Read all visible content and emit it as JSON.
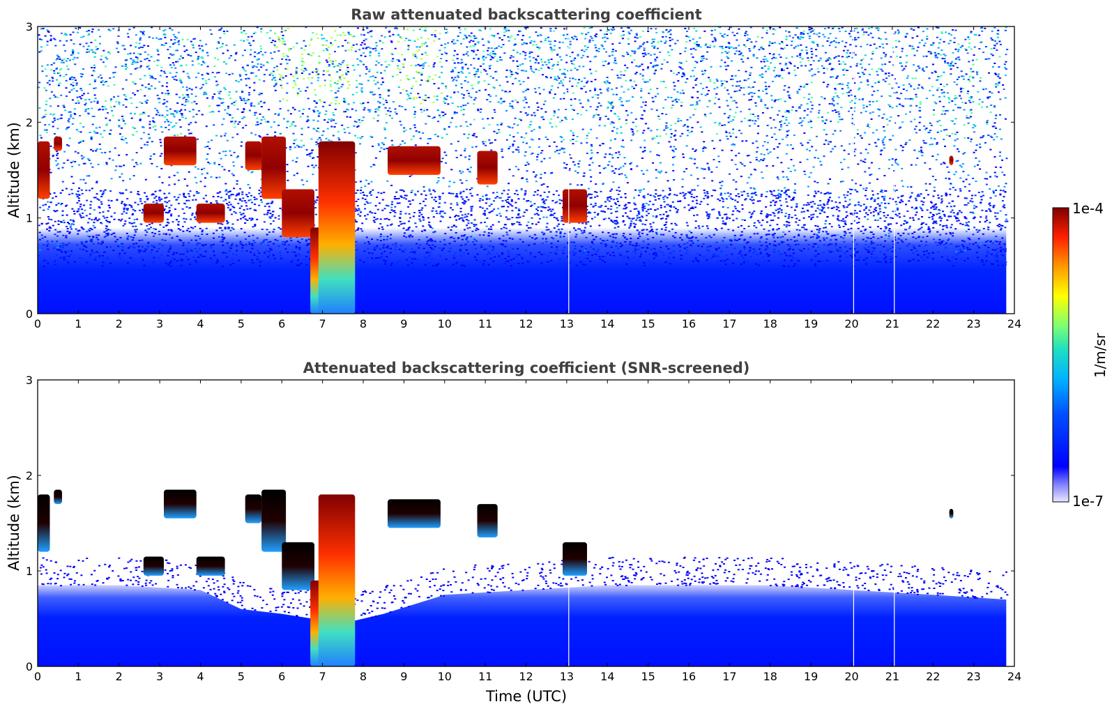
{
  "chart_data": [
    {
      "type": "heatmap",
      "title": "Raw attenuated backscattering coefficient",
      "xlabel": "",
      "ylabel": "Altitude (km)",
      "xlim": [
        0,
        24
      ],
      "ylim": [
        0,
        3
      ],
      "x_ticks": [
        "0",
        "1",
        "2",
        "3",
        "4",
        "5",
        "6",
        "7",
        "8",
        "9",
        "10",
        "11",
        "12",
        "13",
        "14",
        "15",
        "16",
        "17",
        "18",
        "19",
        "20",
        "21",
        "22",
        "23",
        "24"
      ],
      "y_ticks": [
        "0",
        "1",
        "2",
        "3"
      ],
      "features": [
        {
          "kind": "cloud",
          "time_start": 0.0,
          "time_end": 0.3,
          "alt_top": 1.8,
          "alt_bottom": 1.2
        },
        {
          "kind": "cloud",
          "time_start": 0.4,
          "time_end": 0.6,
          "alt_top": 1.85,
          "alt_bottom": 1.7
        },
        {
          "kind": "cloud",
          "time_start": 2.6,
          "time_end": 3.1,
          "alt_top": 1.15,
          "alt_bottom": 0.95
        },
        {
          "kind": "cloud",
          "time_start": 3.1,
          "time_end": 3.9,
          "alt_top": 1.85,
          "alt_bottom": 1.55
        },
        {
          "kind": "cloud",
          "time_start": 3.9,
          "time_end": 4.6,
          "alt_top": 1.15,
          "alt_bottom": 0.95
        },
        {
          "kind": "cloud",
          "time_start": 5.1,
          "time_end": 5.5,
          "alt_top": 1.8,
          "alt_bottom": 1.5
        },
        {
          "kind": "cloud",
          "time_start": 5.5,
          "time_end": 6.1,
          "alt_top": 1.85,
          "alt_bottom": 1.2
        },
        {
          "kind": "cloud",
          "time_start": 6.0,
          "time_end": 6.8,
          "alt_top": 1.3,
          "alt_bottom": 0.8
        },
        {
          "kind": "cloud",
          "time_start": 6.7,
          "time_end": 7.0,
          "alt_top": 0.9,
          "alt_bottom": 0.0
        },
        {
          "kind": "cloud",
          "time_start": 6.9,
          "time_end": 7.8,
          "alt_top": 1.8,
          "alt_bottom": 0.0
        },
        {
          "kind": "cloud",
          "time_start": 8.6,
          "time_end": 9.9,
          "alt_top": 1.75,
          "alt_bottom": 1.45
        },
        {
          "kind": "cloud",
          "time_start": 10.8,
          "time_end": 11.3,
          "alt_top": 1.7,
          "alt_bottom": 1.35
        },
        {
          "kind": "cloud",
          "time_start": 12.9,
          "time_end": 13.5,
          "alt_top": 1.3,
          "alt_bottom": 0.95
        },
        {
          "kind": "cloud",
          "time_start": 22.4,
          "time_end": 22.5,
          "alt_top": 1.65,
          "alt_bottom": 1.55
        }
      ]
    },
    {
      "type": "heatmap",
      "title": "Attenuated backscattering coefficient (SNR-screened)",
      "xlabel": "Time (UTC)",
      "ylabel": "Altitude (km)",
      "xlim": [
        0,
        24
      ],
      "ylim": [
        0,
        3
      ],
      "x_ticks": [
        "0",
        "1",
        "2",
        "3",
        "4",
        "5",
        "6",
        "7",
        "8",
        "9",
        "10",
        "11",
        "12",
        "13",
        "14",
        "15",
        "16",
        "17",
        "18",
        "19",
        "20",
        "21",
        "22",
        "23",
        "24"
      ],
      "y_ticks": [
        "0",
        "1",
        "2",
        "3"
      ],
      "boundary_layer_top": [
        {
          "time": 0,
          "alt": 0.85
        },
        {
          "time": 2,
          "alt": 0.85
        },
        {
          "time": 4,
          "alt": 0.8
        },
        {
          "time": 5,
          "alt": 0.6
        },
        {
          "time": 6,
          "alt": 0.55
        },
        {
          "time": 7.5,
          "alt": 0.45
        },
        {
          "time": 8.5,
          "alt": 0.55
        },
        {
          "time": 10,
          "alt": 0.75
        },
        {
          "time": 12,
          "alt": 0.8
        },
        {
          "time": 14,
          "alt": 0.85
        },
        {
          "time": 16,
          "alt": 0.85
        },
        {
          "time": 18,
          "alt": 0.85
        },
        {
          "time": 20,
          "alt": 0.8
        },
        {
          "time": 22,
          "alt": 0.75
        },
        {
          "time": 23.8,
          "alt": 0.7
        }
      ]
    }
  ],
  "colorbar": {
    "label": "1/m/sr",
    "max_label": "1e-4",
    "min_label": "1e-7",
    "scale": "log",
    "range": [
      1e-07,
      0.0001
    ],
    "colormap": "jet"
  }
}
